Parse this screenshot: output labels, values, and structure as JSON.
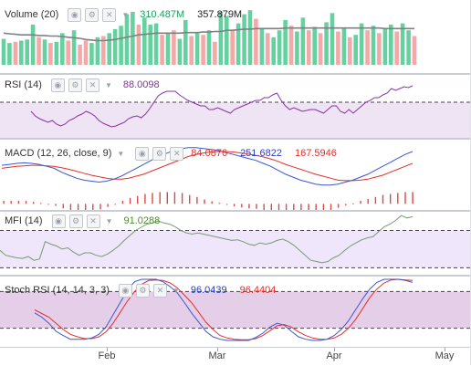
{
  "colors": {
    "up": "#66d1a0",
    "down": "#f4a8a8",
    "volume_ma": "#808080",
    "rsi": "#8b2fa8",
    "band_fill": "#efe4f3",
    "macd": "#3a56d4",
    "signal": "#e3302a",
    "hist": "#d64a4a",
    "mfi": "#7a9a70",
    "mfi_fill": "#efe6fb",
    "stoch_k": "#3a56d4",
    "stoch_d": "#e3302a",
    "stoch_fill": "#e5cfe8"
  },
  "icons": [
    "eye-icon",
    "gear-icon",
    "close-icon",
    "caret-down-icon"
  ],
  "panes": {
    "volume": {
      "title": "Volume (20)",
      "value1": "310.487M",
      "value2": "357.879M",
      "value1_color": "#19a05c",
      "value2_color": "#222222"
    },
    "rsi": {
      "title": "RSI (14)",
      "value1": "88.0098",
      "value1_color": "#8b2fa8"
    },
    "macd": {
      "title": "MACD (12, 26, close, 9)",
      "value1": "84.0876",
      "value2": "251.6822",
      "value3": "167.5946",
      "value1_color": "#e3302a",
      "value2_color": "#2b3fc4",
      "value3_color": "#e3302a"
    },
    "mfi": {
      "title": "MFI (14)",
      "value1": "91.0288",
      "value1_color": "#4e8a2c"
    },
    "stoch": {
      "title": "Stoch RSI (14, 14, 3, 3)",
      "value1": "96.0439",
      "value2": "96.4404",
      "value1_color": "#2b3fc4",
      "value2_color": "#e3302a"
    }
  },
  "xaxis": {
    "labels": [
      "Feb",
      "Mar",
      "Apr",
      "May"
    ]
  },
  "chart_data": [
    {
      "type": "bar",
      "name": "volume",
      "values": [
        45,
        38,
        40,
        42,
        44,
        70,
        48,
        44,
        38,
        40,
        55,
        42,
        60,
        35,
        42,
        38,
        48,
        50,
        55,
        62,
        68,
        88,
        92,
        70,
        82,
        70,
        72,
        52,
        55,
        60,
        45,
        78,
        50,
        55,
        52,
        60,
        40,
        92,
        85,
        60,
        72,
        88,
        95,
        80,
        62,
        55,
        48,
        60,
        78,
        68,
        58,
        82,
        60,
        66,
        55,
        74,
        90,
        58,
        64,
        48,
        52,
        72,
        60,
        68,
        55,
        62,
        70,
        58,
        72,
        60,
        50
      ],
      "up": [
        1,
        1,
        0,
        1,
        1,
        1,
        0,
        1,
        0,
        1,
        1,
        0,
        1,
        0,
        0,
        1,
        1,
        0,
        1,
        1,
        1,
        1,
        1,
        0,
        1,
        1,
        1,
        0,
        1,
        0,
        1,
        1,
        0,
        1,
        0,
        1,
        0,
        1,
        1,
        0,
        1,
        1,
        1,
        0,
        1,
        0,
        1,
        1,
        1,
        0,
        1,
        1,
        0,
        1,
        0,
        1,
        1,
        0,
        1,
        0,
        1,
        1,
        0,
        1,
        0,
        1,
        1,
        0,
        1,
        1,
        0
      ],
      "ma": [
        55,
        54,
        53,
        52,
        52,
        52,
        51,
        51,
        50,
        50,
        49,
        48,
        47,
        46,
        44,
        43,
        42,
        42,
        43,
        44,
        46,
        48,
        50,
        52,
        53,
        54,
        55,
        55,
        55,
        55,
        55,
        56,
        56,
        56,
        57,
        57,
        58,
        58,
        60,
        60,
        61,
        62,
        62,
        63,
        63,
        63,
        63,
        63,
        64,
        64,
        64,
        64,
        64,
        64,
        64,
        64,
        64,
        64,
        64,
        64,
        64,
        64,
        64,
        64,
        64,
        63,
        63,
        63,
        63,
        63,
        63
      ],
      "ylim": [
        0,
        100
      ]
    },
    {
      "type": "line",
      "name": "rsi",
      "values": [
        60,
        55,
        52,
        50,
        48,
        50,
        46,
        44,
        46,
        50,
        52,
        55,
        57,
        60,
        58,
        55,
        50,
        47,
        45,
        43,
        44,
        46,
        48,
        52,
        54,
        55,
        53,
        57,
        63,
        70,
        77,
        80,
        82,
        82,
        82,
        78,
        75,
        72,
        70,
        68,
        66,
        66,
        62,
        62,
        64,
        62,
        60,
        58,
        62,
        64,
        66,
        68,
        70,
        72,
        72,
        75,
        75,
        78,
        80,
        72,
        66,
        62,
        64,
        62,
        60,
        61,
        62,
        62,
        60,
        58,
        62,
        66,
        66,
        60,
        58,
        62,
        58,
        62,
        66,
        70,
        72,
        75,
        75,
        78,
        80,
        85,
        83,
        85,
        87,
        86,
        88
      ],
      "ylim": [
        0,
        100
      ],
      "bands": [
        30,
        70
      ]
    },
    {
      "type": "line",
      "name": "macd",
      "series": [
        {
          "values": [
            78,
            80,
            82,
            83,
            82,
            80,
            76,
            72,
            64,
            58,
            52,
            48,
            46,
            44,
            46,
            50,
            56,
            64,
            72,
            80,
            88,
            96,
            102,
            108,
            112,
            114,
            114,
            112,
            110,
            108,
            104,
            100,
            96,
            92,
            88,
            82,
            76,
            68,
            60,
            54,
            48,
            44,
            40,
            38,
            38,
            40,
            44,
            48,
            54,
            60,
            68,
            76,
            84,
            92,
            100,
            106
          ]
        },
        {
          "values": [
            72,
            74,
            76,
            77,
            78,
            78,
            77,
            76,
            73,
            70,
            66,
            62,
            58,
            55,
            52,
            50,
            50,
            52,
            56,
            60,
            66,
            72,
            78,
            84,
            90,
            96,
            100,
            103,
            105,
            106,
            106,
            105,
            103,
            101,
            98,
            95,
            91,
            86,
            80,
            75,
            70,
            65,
            60,
            56,
            52,
            48,
            47,
            47,
            48,
            50,
            54,
            58,
            64,
            70,
            76,
            82
          ]
        }
      ],
      "hist": [
        6,
        6,
        6,
        6,
        4,
        2,
        -1,
        -4,
        -9,
        -12,
        -14,
        -14,
        -12,
        -11,
        -6,
        0,
        6,
        12,
        16,
        20,
        22,
        24,
        24,
        24,
        22,
        18,
        14,
        9,
        5,
        2,
        -2,
        -5,
        -7,
        -9,
        -10,
        -13,
        -15,
        -18,
        -20,
        -21,
        -22,
        -21,
        -20,
        -18,
        -14,
        -8,
        -3,
        1,
        6,
        10,
        14,
        18,
        20,
        22,
        24,
        24
      ],
      "ylim": [
        -40,
        130
      ]
    },
    {
      "type": "area",
      "name": "mfi",
      "values": [
        48,
        40,
        38,
        36,
        35,
        38,
        32,
        34,
        62,
        58,
        55,
        50,
        52,
        45,
        40,
        44,
        44,
        40,
        38,
        42,
        48,
        55,
        64,
        72,
        80,
        85,
        90,
        92,
        95,
        92,
        90,
        86,
        80,
        76,
        74,
        76,
        74,
        72,
        70,
        68,
        66,
        64,
        65,
        62,
        58,
        56,
        60,
        58,
        60,
        64,
        66,
        62,
        56,
        48,
        40,
        32,
        30,
        28,
        30,
        36,
        40,
        48,
        55,
        60,
        65,
        68,
        70,
        78,
        86,
        90,
        96,
        104,
        100,
        102
      ],
      "ylim": [
        0,
        110
      ],
      "bands": [
        20,
        80
      ]
    },
    {
      "type": "line",
      "name": "stoch_rsi",
      "series": [
        {
          "values": [
            45,
            38,
            28,
            15,
            8,
            2,
            2,
            2,
            4,
            10,
            22,
            42,
            62,
            82,
            96,
            100,
            100,
            100,
            96,
            88,
            78,
            62,
            45,
            30,
            15,
            6,
            2,
            0,
            0,
            0,
            0,
            5,
            12,
            22,
            28,
            25,
            15,
            6,
            2,
            0,
            0,
            2,
            8,
            18,
            32,
            50,
            68,
            84,
            95,
            100,
            100,
            100,
            98,
            95
          ]
        },
        {
          "values": [
            50,
            44,
            38,
            28,
            18,
            10,
            6,
            3,
            3,
            6,
            14,
            28,
            46,
            64,
            80,
            92,
            98,
            99,
            98,
            94,
            86,
            74,
            62,
            46,
            30,
            18,
            8,
            4,
            2,
            1,
            1,
            3,
            8,
            16,
            24,
            26,
            22,
            14,
            8,
            4,
            2,
            2,
            4,
            10,
            20,
            34,
            52,
            70,
            84,
            94,
            99,
            100,
            99,
            98
          ]
        }
      ],
      "ylim": [
        0,
        100
      ],
      "bands": [
        20,
        80
      ]
    }
  ]
}
